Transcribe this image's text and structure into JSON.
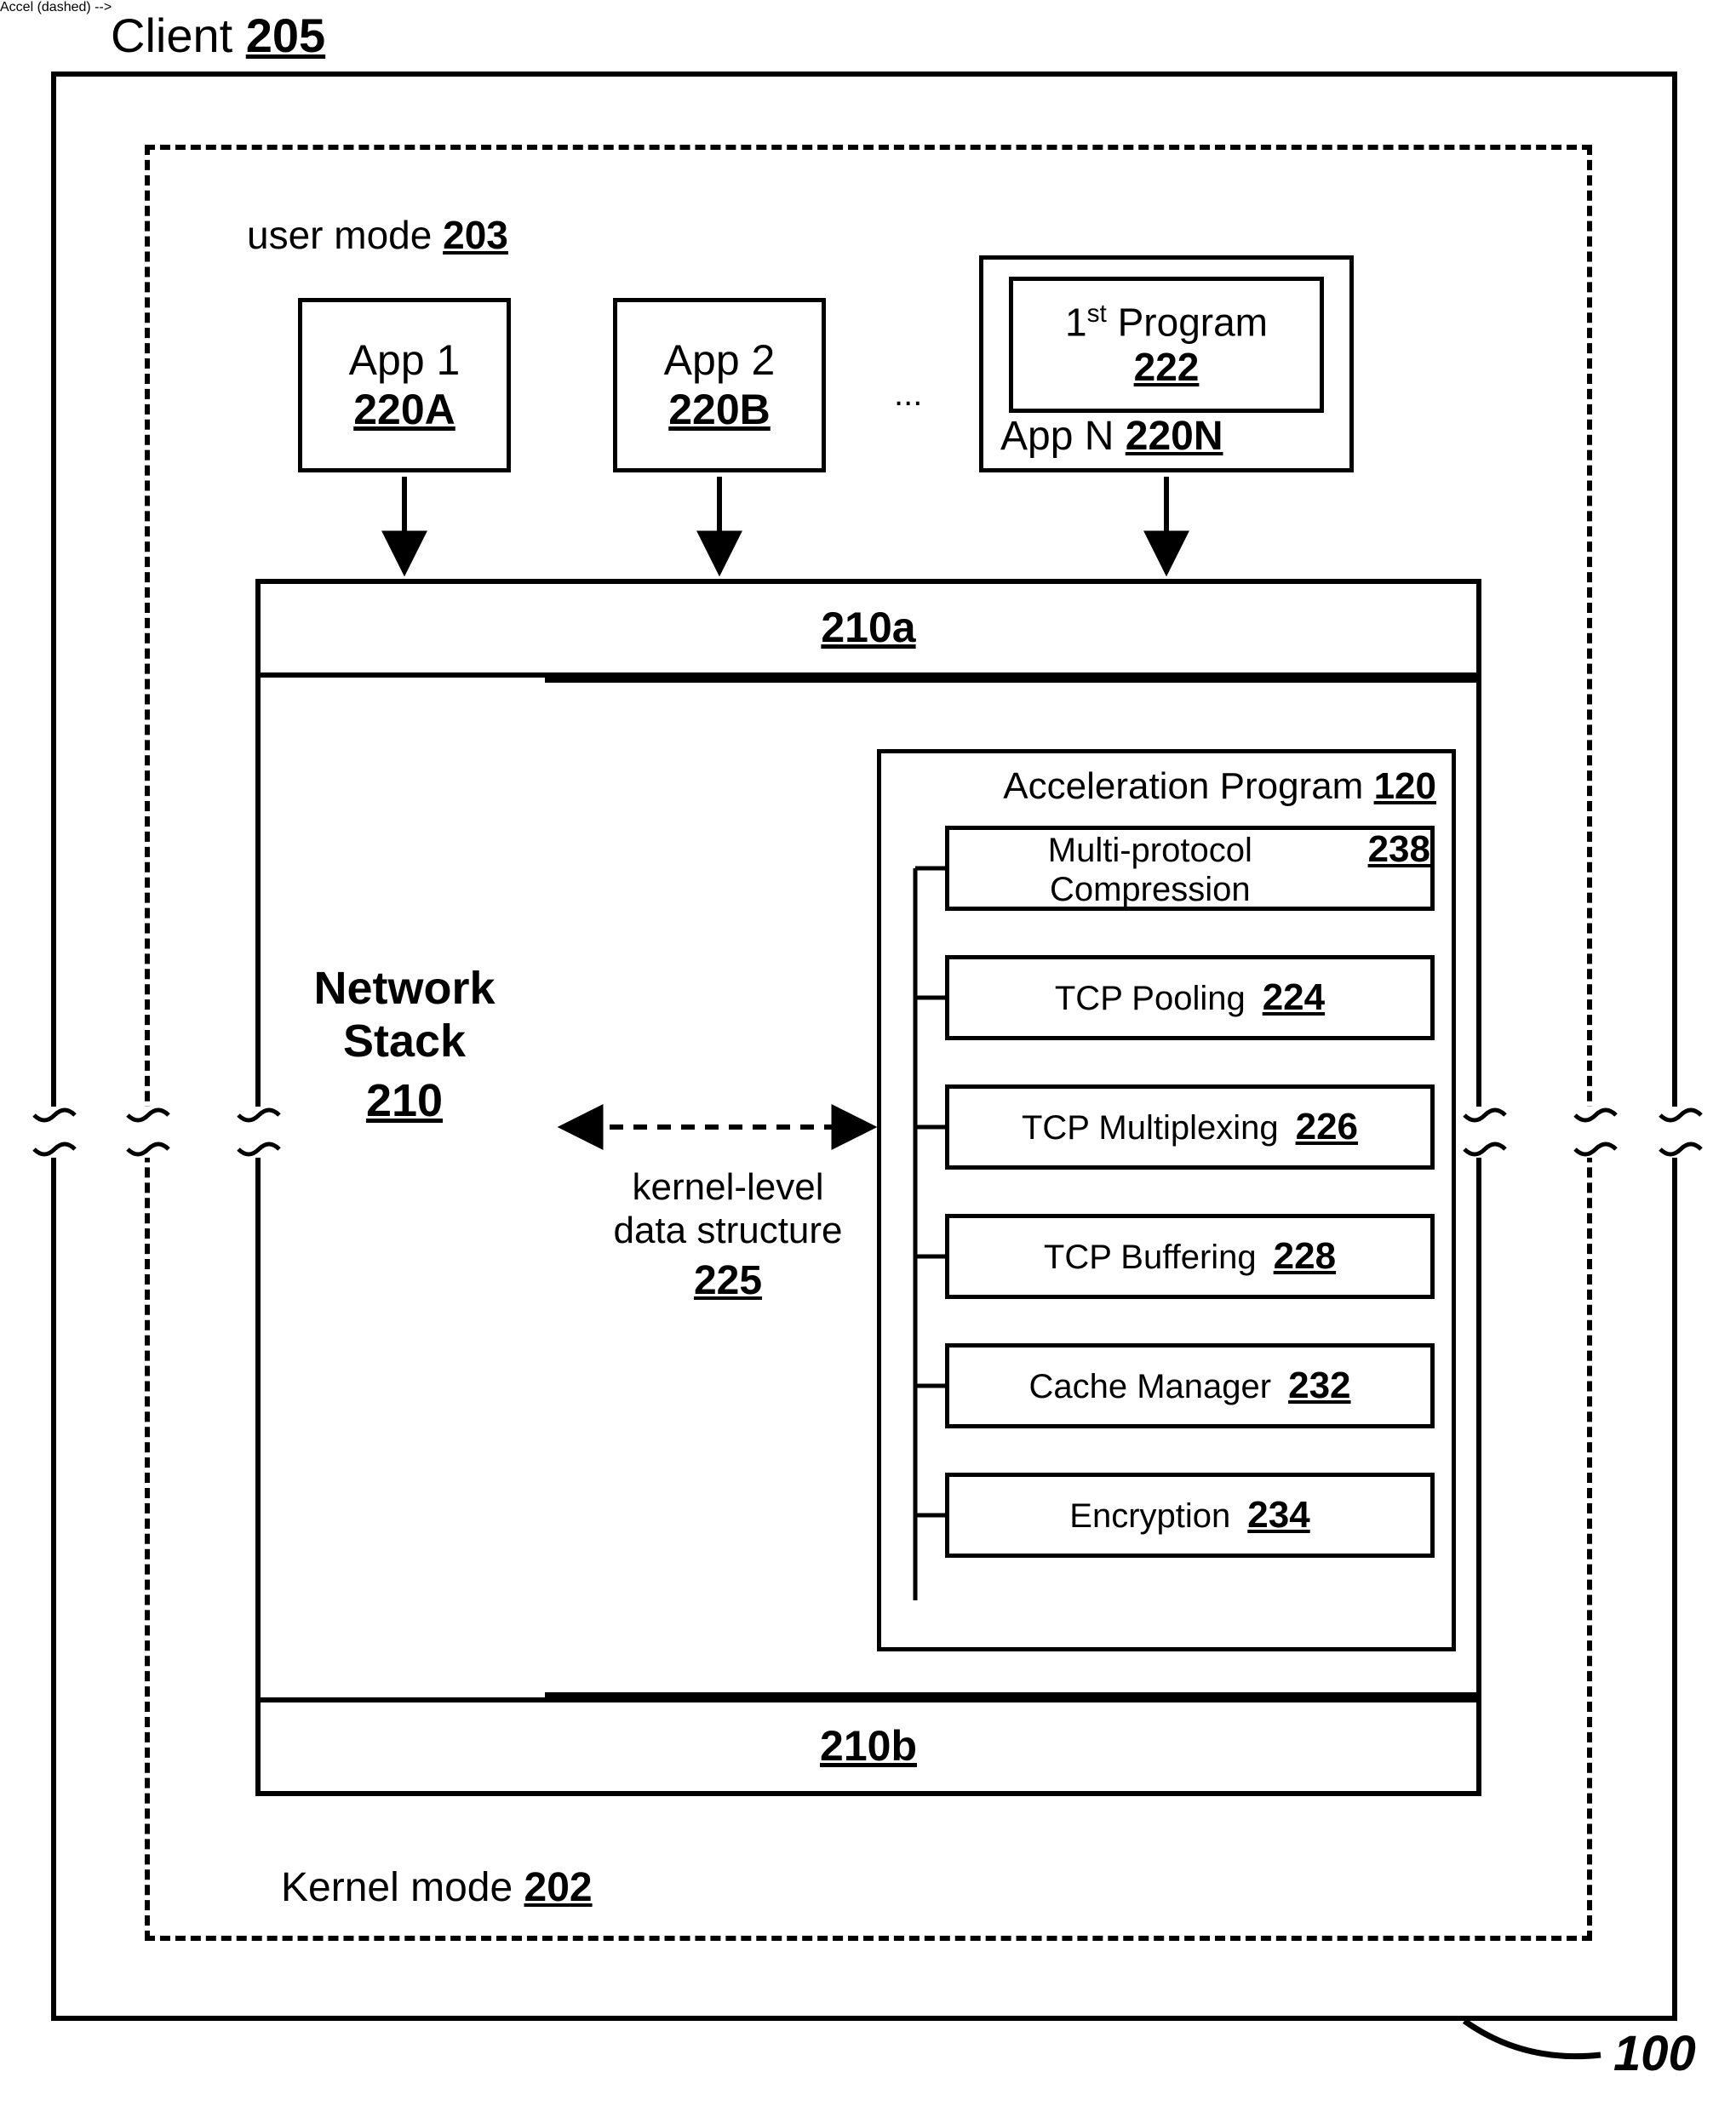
{
  "figure_ref": "100",
  "client": {
    "label": "Client",
    "ref": "205"
  },
  "user_mode": {
    "label": "user mode",
    "ref": "203"
  },
  "kernel_mode": {
    "label": "Kernel mode",
    "ref": "202"
  },
  "apps": {
    "a": {
      "label": "App 1",
      "ref": "220A"
    },
    "b": {
      "label": "App 2",
      "ref": "220B"
    },
    "n": {
      "label": "App N",
      "ref": "220N"
    },
    "first_program": {
      "label_pre": "1",
      "label_sup": "st",
      "label_post": " Program",
      "ref": "222"
    },
    "ellipsis": "..."
  },
  "layers": {
    "upper": "210a",
    "lower": "210b"
  },
  "network_stack": {
    "label": "Network Stack",
    "ref": "210"
  },
  "kds": {
    "line1": "kernel-level",
    "line2": "data structure",
    "ref": "225"
  },
  "accel": {
    "title": "Acceleration Program",
    "ref": "120",
    "items": [
      {
        "label": "Multi-protocol Compression",
        "ref": "238"
      },
      {
        "label": "TCP Pooling",
        "ref": "224"
      },
      {
        "label": "TCP Multiplexing",
        "ref": "226"
      },
      {
        "label": "TCP Buffering",
        "ref": "228"
      },
      {
        "label": "Cache Manager",
        "ref": "232"
      },
      {
        "label": "Encryption",
        "ref": "234"
      }
    ]
  },
  "style": {
    "font_title": 54,
    "font_box": 48,
    "font_small": 42,
    "line_w": 6,
    "arrow_size": 26
  }
}
